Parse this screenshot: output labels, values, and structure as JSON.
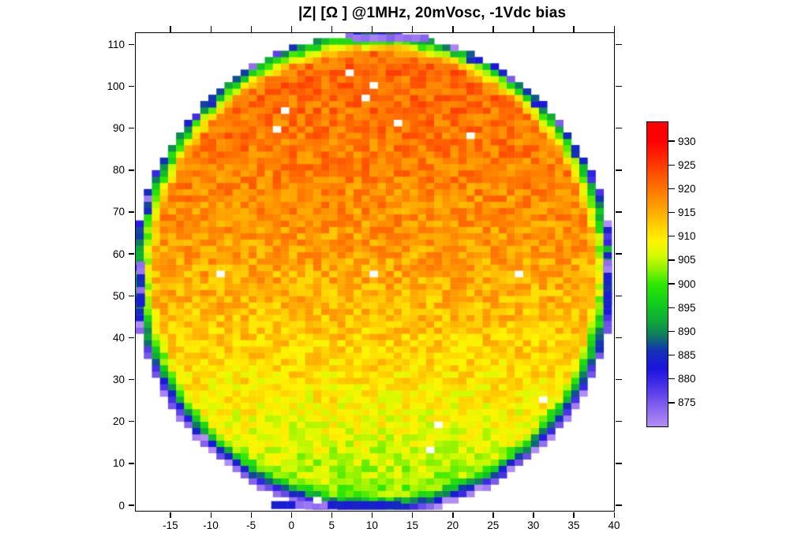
{
  "title": "|Z| [Ω ] @1MHz, 20mVosc, -1Vdc bias",
  "chart_data": {
    "type": "heatmap",
    "title": "|Z| [Ω ] @1MHz, 20mVosc, -1Vdc bias",
    "xlabel": "",
    "ylabel": "",
    "grid": false,
    "legend_position": "right-colorbar",
    "x_axis": {
      "min": -19.3,
      "max": 40,
      "ticks": [
        -15,
        -10,
        -5,
        0,
        5,
        10,
        15,
        20,
        25,
        30,
        35,
        40
      ]
    },
    "y_axis": {
      "min": -1.3,
      "max": 112.7,
      "ticks": [
        0,
        10,
        20,
        30,
        40,
        50,
        60,
        70,
        80,
        90,
        100,
        110
      ]
    },
    "colorbar": {
      "min": 870,
      "max": 934,
      "ticks": [
        875,
        880,
        885,
        890,
        895,
        900,
        905,
        910,
        915,
        920,
        925,
        930
      ],
      "stops": [
        [
          870,
          "#B38DF5"
        ],
        [
          874,
          "#8663EE"
        ],
        [
          878,
          "#5036E8"
        ],
        [
          882,
          "#1C14E0"
        ],
        [
          886,
          "#1333B4"
        ],
        [
          889,
          "#0E7A62"
        ],
        [
          892,
          "#10A83A"
        ],
        [
          896,
          "#12CF1D"
        ],
        [
          900,
          "#2FE800"
        ],
        [
          903,
          "#8CF200"
        ],
        [
          906,
          "#D6FA00"
        ],
        [
          909,
          "#FFF400"
        ],
        [
          912,
          "#FFD400"
        ],
        [
          915,
          "#FFAE00"
        ],
        [
          918,
          "#FF8C00"
        ],
        [
          921,
          "#FF6A00"
        ],
        [
          924,
          "#FF4600"
        ],
        [
          927,
          "#FF2400"
        ],
        [
          930,
          "#FF0000"
        ],
        [
          934,
          "#FF0000"
        ]
      ]
    },
    "wafer": {
      "center_x": 10.2,
      "center_y": 55.0,
      "radius_x": 29.4,
      "radius_y": 56.9,
      "mask_limit": 1.015,
      "cell_w": 1.0,
      "cell_h": 1.5,
      "value_base_center": 915.5,
      "vertical_gradient_per_unit": 0.17,
      "curvature": -0.0011,
      "edge_falloff_start": 0.92,
      "edge_falloff_drop": 30,
      "edge_falloff_power": 1.3,
      "noise_amplitude": 4.0,
      "rim_blue_chance": 0.2,
      "rim_blue_drop": 11,
      "seed": 7
    },
    "missing_cells": [
      [
        7.4,
        102.9
      ],
      [
        10.4,
        100.7
      ],
      [
        9.3,
        97.7
      ],
      [
        -0.5,
        94.9
      ],
      [
        -1.6,
        90.4
      ],
      [
        13.4,
        91.8
      ],
      [
        22.5,
        88.5
      ],
      [
        -8.7,
        54.7
      ],
      [
        10.6,
        54.7
      ],
      [
        28.4,
        54.7
      ],
      [
        31.5,
        24.6
      ],
      [
        17.7,
        19.0
      ],
      [
        17.5,
        13.2
      ],
      [
        3.6,
        0.5
      ]
    ],
    "edge_tabs": [
      {
        "name": "left-tab",
        "x0": -19.2,
        "x1": -18.2,
        "y0": 47.5,
        "y1": 58.2,
        "values": [
          873,
          872,
          884,
          886,
          873,
          884,
          883
        ]
      },
      {
        "name": "right-tab",
        "x0": 38.7,
        "x1": 39.7,
        "y0": 47.8,
        "y1": 58.6,
        "values": [
          873,
          871,
          883,
          884,
          886,
          883,
          884
        ]
      },
      {
        "name": "top-tab",
        "x0": 7.6,
        "x1": 17.0,
        "y0": 110.7,
        "y1": 112.4,
        "values": [
          872,
          873,
          871,
          872,
          874,
          872,
          873,
          872,
          874
        ]
      },
      {
        "name": "bottom-strip",
        "x0": -2.5,
        "x1": 13.5,
        "y0": -0.8,
        "y1": 1.0,
        "values": [
          884,
          883,
          883,
          873,
          872,
          873,
          872,
          883,
          884,
          883,
          884,
          883,
          884,
          883,
          884,
          885
        ]
      }
    ]
  }
}
